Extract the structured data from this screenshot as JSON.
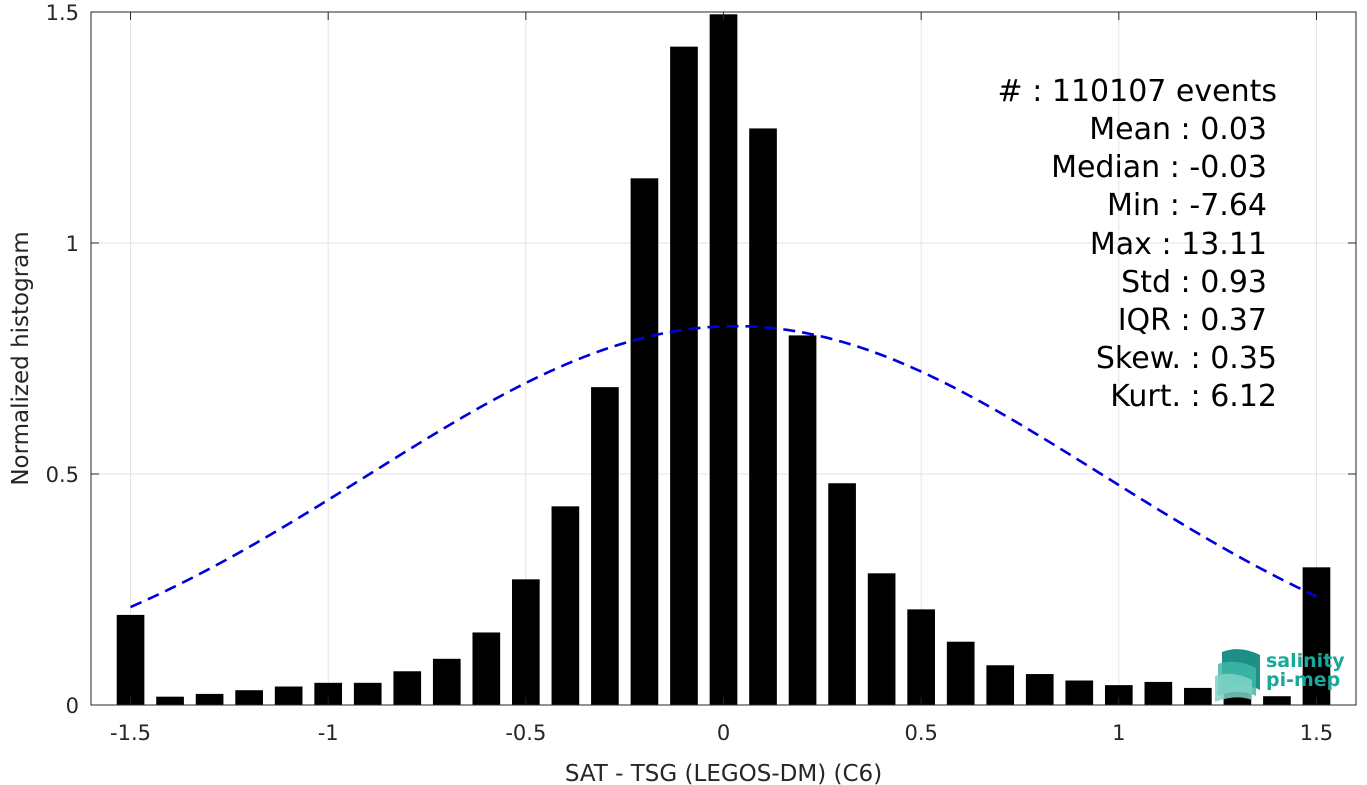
{
  "chart_data": {
    "type": "bar",
    "xlabel": "SAT - TSG (LEGOS-DM) (C6)",
    "ylabel": "Normalized histogram",
    "xlim": [
      -1.6,
      1.6
    ],
    "ylim": [
      0,
      1.5
    ],
    "xticks": [
      -1.5,
      -1,
      -0.5,
      0,
      0.5,
      1,
      1.5
    ],
    "xtick_labels": [
      "-1.5",
      "-1",
      "-0.5",
      "0",
      "0.5",
      "1",
      "1.5"
    ],
    "yticks": [
      0,
      0.5,
      1,
      1.5
    ],
    "ytick_labels": [
      "0",
      "0.5",
      "1",
      "1.5"
    ],
    "grid": true,
    "bar_width": 0.07,
    "x": [
      -1.5,
      -1.4,
      -1.3,
      -1.2,
      -1.1,
      -1.0,
      -0.9,
      -0.8,
      -0.7,
      -0.6,
      -0.5,
      -0.4,
      -0.3,
      -0.2,
      -0.1,
      0.0,
      0.1,
      0.2,
      0.3,
      0.4,
      0.5,
      0.6,
      0.7,
      0.8,
      0.9,
      1.0,
      1.1,
      1.2,
      1.3,
      1.4,
      1.5
    ],
    "values": [
      0.195,
      0.018,
      0.024,
      0.032,
      0.04,
      0.048,
      0.048,
      0.073,
      0.1,
      0.157,
      0.272,
      0.43,
      0.688,
      1.14,
      1.425,
      1.495,
      1.248,
      0.8,
      0.48,
      0.285,
      0.207,
      0.137,
      0.086,
      0.067,
      0.053,
      0.043,
      0.05,
      0.037,
      0.028,
      0.019,
      0.298
    ],
    "series": [
      {
        "type": "bar",
        "color": "#000000"
      },
      {
        "type": "line",
        "style": "dashed",
        "color": "#0000dd",
        "mean": 0.03,
        "std": 0.93,
        "peak": 0.82
      }
    ],
    "annotations": [
      "#  : 110107 events",
      "Mean : 0.03",
      "Median : -0.03",
      "Min : -7.64",
      "Max : 13.11",
      "Std : 0.93",
      "IQR : 0.37",
      "Skew. : 0.35",
      "Kurt. : 6.12"
    ]
  },
  "logo": {
    "line1": "salinity",
    "line2": "pi-mep",
    "color": "#19a89a"
  }
}
